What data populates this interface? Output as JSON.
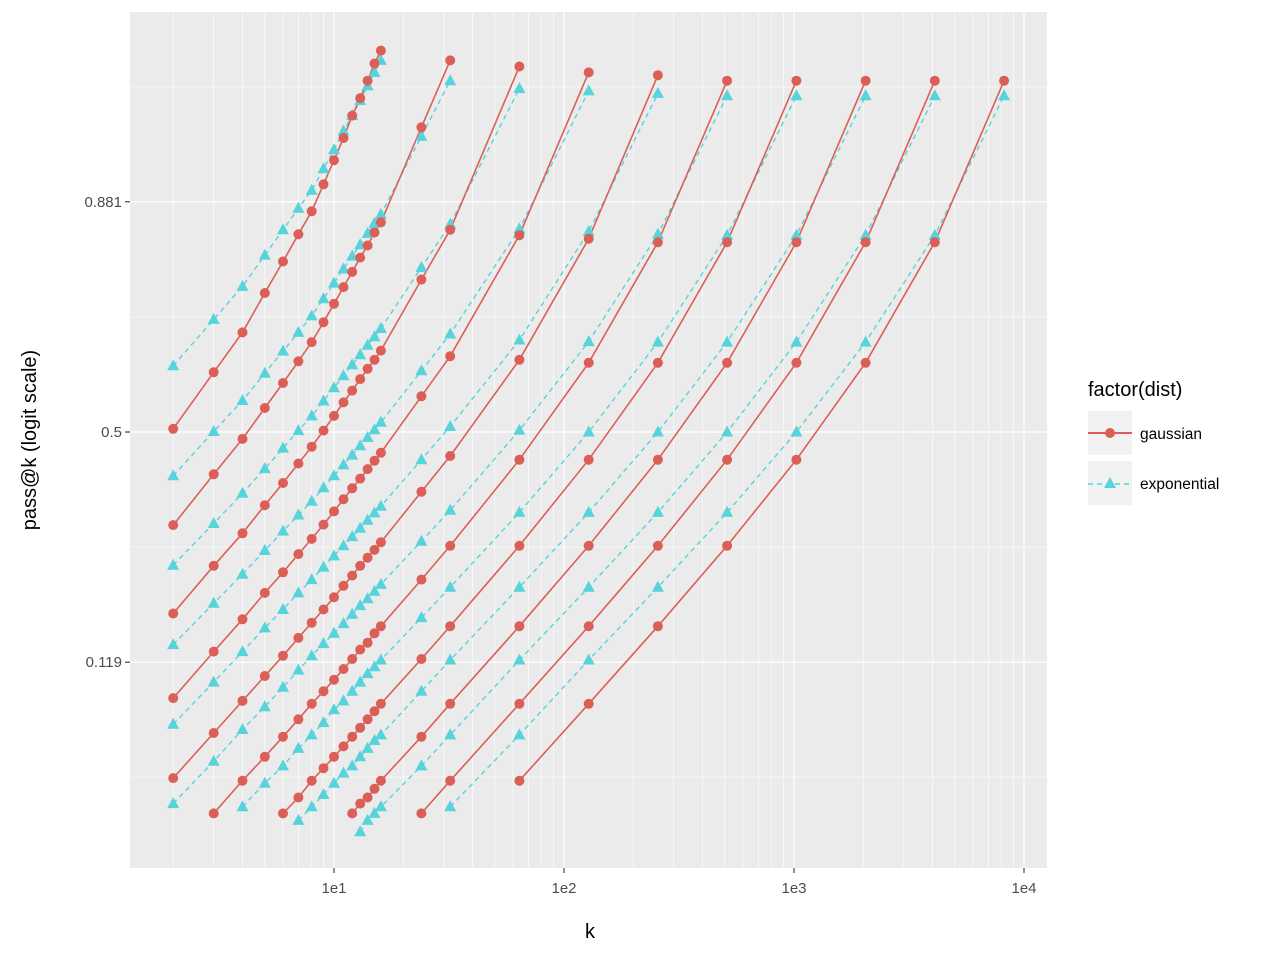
{
  "chart_data": {
    "type": "line",
    "title": "",
    "xlabel": "k",
    "ylabel": "pass@k (logit scale)",
    "x_scale": "log10",
    "y_scale": "logit",
    "xlim": [
      1.6,
      10500
    ],
    "ylim_logit": [
      -3.8,
      3.65
    ],
    "x_ticks": [
      {
        "value": 10,
        "label": "1e1"
      },
      {
        "value": 100,
        "label": "1e2"
      },
      {
        "value": 1000,
        "label": "1e3"
      },
      {
        "value": 10000,
        "label": "1e4"
      }
    ],
    "y_ticks": [
      {
        "value": 0.119,
        "label": "0.119"
      },
      {
        "value": 0.5,
        "label": "0.5"
      },
      {
        "value": 0.881,
        "label": "0.881"
      }
    ],
    "grid": true,
    "legend": {
      "title": "factor(dist)",
      "placement": "right",
      "entries": [
        {
          "label": "gaussian",
          "color": "#db5f57",
          "marker": "circle",
          "linestyle": "solid"
        },
        {
          "label": "exponential",
          "color": "#57d3db",
          "marker": "triangle",
          "linestyle": "dashed"
        }
      ]
    },
    "series": [
      {
        "dist": "gaussian",
        "k": [
          2,
          3,
          4,
          5,
          6,
          7,
          8,
          9,
          10,
          11,
          12,
          13,
          14,
          15,
          16
        ],
        "pass_at_k": [
          0.507,
          0.627,
          0.704,
          0.77,
          0.815,
          0.848,
          0.872,
          0.896,
          0.914,
          0.928,
          0.94,
          0.948,
          0.955,
          0.961,
          0.965
        ]
      },
      {
        "dist": "gaussian",
        "k": [
          2,
          3,
          4,
          5,
          6,
          7,
          8,
          9,
          10,
          11,
          12,
          13,
          14,
          15,
          16,
          24,
          32
        ],
        "pass_at_k": [
          0.308,
          0.409,
          0.485,
          0.552,
          0.605,
          0.649,
          0.686,
          0.722,
          0.753,
          0.779,
          0.801,
          0.82,
          0.835,
          0.85,
          0.861,
          0.934,
          0.962
        ]
      },
      {
        "dist": "gaussian",
        "k": [
          2,
          3,
          4,
          5,
          6,
          7,
          8,
          9,
          10,
          11,
          12,
          13,
          14,
          15,
          16,
          24,
          32,
          64
        ],
        "pass_at_k": [
          0.171,
          0.238,
          0.293,
          0.346,
          0.391,
          0.432,
          0.468,
          0.503,
          0.535,
          0.564,
          0.589,
          0.613,
          0.634,
          0.652,
          0.67,
          0.79,
          0.853,
          0.96
        ]
      },
      {
        "dist": "gaussian",
        "k": [
          2,
          3,
          4,
          5,
          6,
          7,
          8,
          9,
          10,
          11,
          12,
          13,
          14,
          15,
          16,
          24,
          32,
          64,
          128
        ],
        "pass_at_k": [
          0.09,
          0.129,
          0.164,
          0.198,
          0.228,
          0.257,
          0.283,
          0.309,
          0.334,
          0.358,
          0.38,
          0.4,
          0.42,
          0.438,
          0.455,
          0.577,
          0.659,
          0.847,
          0.958
        ]
      },
      {
        "dist": "gaussian",
        "k": [
          2,
          3,
          4,
          5,
          6,
          7,
          8,
          9,
          10,
          11,
          12,
          13,
          14,
          15,
          16,
          24,
          32,
          64,
          128,
          256
        ],
        "pass_at_k": [
          0.047,
          0.068,
          0.088,
          0.107,
          0.125,
          0.143,
          0.16,
          0.176,
          0.192,
          0.208,
          0.223,
          0.238,
          0.251,
          0.264,
          0.277,
          0.373,
          0.448,
          0.652,
          0.843,
          0.957
        ]
      },
      {
        "dist": "gaussian",
        "k": [
          3,
          4,
          5,
          6,
          7,
          8,
          9,
          10,
          11,
          12,
          13,
          14,
          15,
          16,
          24,
          32,
          64,
          128,
          256,
          512
        ],
        "pass_at_k": [
          0.035,
          0.046,
          0.056,
          0.066,
          0.076,
          0.086,
          0.095,
          0.104,
          0.113,
          0.122,
          0.131,
          0.138,
          0.148,
          0.156,
          0.217,
          0.271,
          0.44,
          0.646,
          0.839,
          0.955
        ]
      },
      {
        "dist": "gaussian",
        "k": [
          6,
          7,
          8,
          9,
          10,
          11,
          12,
          13,
          14,
          15,
          16,
          24,
          32,
          64,
          128,
          256,
          512,
          1024
        ],
        "pass_at_k": [
          0.035,
          0.04,
          0.046,
          0.051,
          0.056,
          0.061,
          0.066,
          0.071,
          0.076,
          0.081,
          0.086,
          0.122,
          0.156,
          0.271,
          0.44,
          0.646,
          0.839,
          0.955
        ]
      },
      {
        "dist": "gaussian",
        "k": [
          12,
          13,
          14,
          15,
          16,
          24,
          32,
          64,
          128,
          256,
          512,
          1024,
          2048
        ],
        "pass_at_k": [
          0.035,
          0.038,
          0.04,
          0.043,
          0.046,
          0.066,
          0.086,
          0.156,
          0.271,
          0.44,
          0.646,
          0.839,
          0.955
        ]
      },
      {
        "dist": "gaussian",
        "k": [
          24,
          32,
          64,
          128,
          256,
          512,
          1024,
          2048,
          4096
        ],
        "pass_at_k": [
          0.035,
          0.046,
          0.086,
          0.156,
          0.271,
          0.44,
          0.646,
          0.839,
          0.955
        ]
      },
      {
        "dist": "gaussian",
        "k": [
          64,
          128,
          256,
          512,
          1024,
          2048,
          4096,
          8192
        ],
        "pass_at_k": [
          0.046,
          0.086,
          0.156,
          0.271,
          0.44,
          0.646,
          0.839,
          0.955
        ]
      },
      {
        "dist": "exponential",
        "k": [
          2,
          3,
          4,
          5,
          6,
          7,
          8,
          9,
          10,
          11,
          12,
          13,
          14,
          15,
          16
        ],
        "pass_at_k": [
          0.64,
          0.727,
          0.78,
          0.823,
          0.853,
          0.875,
          0.891,
          0.908,
          0.921,
          0.932,
          0.94,
          0.947,
          0.953,
          0.958,
          0.962
        ]
      },
      {
        "dist": "exponential",
        "k": [
          2,
          3,
          4,
          5,
          6,
          7,
          8,
          9,
          10,
          11,
          12,
          13,
          14,
          15,
          16,
          24,
          32
        ],
        "pass_at_k": [
          0.406,
          0.501,
          0.568,
          0.625,
          0.669,
          0.704,
          0.733,
          0.761,
          0.785,
          0.805,
          0.822,
          0.836,
          0.849,
          0.86,
          0.869,
          0.929,
          0.955
        ]
      },
      {
        "dist": "exponential",
        "k": [
          2,
          3,
          4,
          5,
          6,
          7,
          8,
          9,
          10,
          11,
          12,
          13,
          14,
          15,
          16,
          24,
          32,
          64
        ],
        "pass_at_k": [
          0.239,
          0.311,
          0.37,
          0.421,
          0.465,
          0.503,
          0.535,
          0.567,
          0.595,
          0.62,
          0.642,
          0.662,
          0.68,
          0.696,
          0.711,
          0.807,
          0.859,
          0.952
        ]
      },
      {
        "dist": "exponential",
        "k": [
          2,
          3,
          4,
          5,
          6,
          7,
          8,
          9,
          10,
          11,
          12,
          13,
          14,
          15,
          16,
          24,
          32,
          64,
          128
        ],
        "pass_at_k": [
          0.136,
          0.184,
          0.225,
          0.263,
          0.297,
          0.327,
          0.354,
          0.381,
          0.406,
          0.429,
          0.45,
          0.47,
          0.488,
          0.505,
          0.521,
          0.63,
          0.701,
          0.854,
          0.951
        ]
      },
      {
        "dist": "exponential",
        "k": [
          2,
          3,
          4,
          5,
          6,
          7,
          8,
          9,
          10,
          11,
          12,
          13,
          14,
          15,
          16,
          24,
          32,
          64,
          128,
          256
        ],
        "pass_at_k": [
          0.073,
          0.102,
          0.129,
          0.154,
          0.176,
          0.198,
          0.217,
          0.236,
          0.254,
          0.271,
          0.287,
          0.302,
          0.317,
          0.331,
          0.344,
          0.44,
          0.512,
          0.69,
          0.851,
          0.95
        ]
      },
      {
        "dist": "exponential",
        "k": [
          2,
          3,
          4,
          5,
          6,
          7,
          8,
          9,
          10,
          11,
          12,
          13,
          14,
          15,
          16,
          24,
          32,
          64,
          128,
          256,
          512
        ],
        "pass_at_k": [
          0.038,
          0.054,
          0.07,
          0.084,
          0.098,
          0.112,
          0.125,
          0.137,
          0.148,
          0.159,
          0.17,
          0.181,
          0.19,
          0.2,
          0.21,
          0.279,
          0.336,
          0.504,
          0.687,
          0.848,
          0.949
        ]
      },
      {
        "dist": "exponential",
        "k": [
          4,
          5,
          6,
          7,
          8,
          9,
          10,
          11,
          12,
          13,
          14,
          15,
          16,
          24,
          32,
          64,
          128,
          256,
          512,
          1024
        ],
        "pass_at_k": [
          0.037,
          0.045,
          0.052,
          0.06,
          0.067,
          0.074,
          0.082,
          0.088,
          0.095,
          0.102,
          0.109,
          0.115,
          0.121,
          0.166,
          0.206,
          0.332,
          0.5,
          0.686,
          0.847,
          0.949
        ]
      },
      {
        "dist": "exponential",
        "k": [
          7,
          8,
          9,
          10,
          11,
          12,
          13,
          14,
          15,
          16,
          24,
          32,
          64,
          128,
          256,
          512,
          1024,
          2048
        ],
        "pass_at_k": [
          0.033,
          0.037,
          0.041,
          0.045,
          0.049,
          0.052,
          0.056,
          0.06,
          0.064,
          0.067,
          0.095,
          0.121,
          0.206,
          0.332,
          0.5,
          0.686,
          0.847,
          0.949
        ]
      },
      {
        "dist": "exponential",
        "k": [
          13,
          14,
          15,
          16,
          24,
          32,
          64,
          128,
          256,
          512,
          1024,
          2048,
          4096
        ],
        "pass_at_k": [
          0.03,
          0.033,
          0.035,
          0.037,
          0.052,
          0.067,
          0.121,
          0.206,
          0.332,
          0.5,
          0.686,
          0.847,
          0.949
        ]
      },
      {
        "dist": "exponential",
        "k": [
          32,
          64,
          128,
          256,
          512,
          1024,
          2048,
          4096,
          8192
        ],
        "pass_at_k": [
          0.037,
          0.067,
          0.121,
          0.206,
          0.332,
          0.5,
          0.686,
          0.847,
          0.949
        ]
      }
    ]
  }
}
